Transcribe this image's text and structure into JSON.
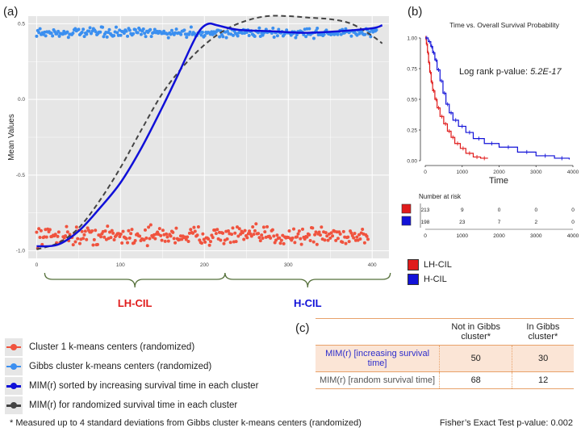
{
  "panels": {
    "a": "(a)",
    "b": "(b)",
    "c": "(c)"
  },
  "colors": {
    "cluster1": "#f0533e",
    "gibbs": "#3b8ff0",
    "mim_sorted": "#1010d8",
    "mim_random": "#444444",
    "panel_bg": "#e6e6e6",
    "lh": "#e01b1b",
    "h": "#1212d8"
  },
  "chart_data": [
    {
      "type": "scatter",
      "ylabel": "Mean Values",
      "xlim": [
        -10,
        420
      ],
      "ylim": [
        -1.05,
        0.55
      ],
      "x_ticks": [
        "0",
        "100",
        "200",
        "300",
        "400"
      ],
      "y_ticks": [
        "0.5",
        "0.0",
        "-0.5",
        "-1.0"
      ],
      "grid": true,
      "series": [
        {
          "name": "Cluster 1 k-means centers (randomized)",
          "kind": "points",
          "x_range": [
            0,
            395
          ],
          "y_center": -0.9,
          "y_spread": 0.06
        },
        {
          "name": "Gibbs cluster k-means centers (randomized)",
          "kind": "points",
          "x_range": [
            0,
            405
          ],
          "y_center": 0.44,
          "y_spread": 0.03
        },
        {
          "name": "MIM(r) sorted by increasing survival time in each cluster",
          "kind": "line",
          "x": [
            0,
            25,
            50,
            75,
            100,
            125,
            150,
            170,
            185,
            195,
            205,
            215,
            240,
            280,
            320,
            360,
            400,
            412
          ],
          "y": [
            -0.97,
            -0.96,
            -0.87,
            -0.72,
            -0.55,
            -0.32,
            -0.05,
            0.18,
            0.36,
            0.46,
            0.5,
            0.49,
            0.46,
            0.45,
            0.44,
            0.45,
            0.47,
            0.49
          ]
        },
        {
          "name": "MIM(r) for randomized survival time in each cluster",
          "kind": "line",
          "x": [
            0,
            25,
            50,
            75,
            100,
            125,
            150,
            175,
            200,
            225,
            250,
            275,
            300,
            325,
            350,
            375,
            400,
            412
          ],
          "y": [
            -0.99,
            -0.95,
            -0.85,
            -0.67,
            -0.45,
            -0.2,
            0.04,
            0.22,
            0.36,
            0.46,
            0.52,
            0.55,
            0.55,
            0.54,
            0.53,
            0.5,
            0.42,
            0.37
          ]
        }
      ],
      "groups": [
        {
          "label": "LH-CIL",
          "x_range": [
            0,
            215
          ]
        },
        {
          "label": "H-CIL",
          "x_range": [
            215,
            412
          ]
        }
      ]
    },
    {
      "type": "line",
      "title": "Time vs. Overall Survival Probability",
      "xlabel": "Time",
      "xlim": [
        0,
        4000
      ],
      "ylim": [
        0,
        1
      ],
      "x_ticks": [
        "0",
        "1000",
        "2000",
        "3000",
        "4000"
      ],
      "y_ticks": [
        "1.00",
        "0.75",
        "0.50",
        "0.25",
        "0.00"
      ],
      "annotation": {
        "text": "Log rank p-value: ",
        "value": "5.2E-17"
      },
      "series": [
        {
          "name": "LH-CIL",
          "time": [
            0,
            30,
            60,
            90,
            120,
            160,
            200,
            260,
            320,
            400,
            500,
            600,
            700,
            800,
            950,
            1100,
            1300,
            1500,
            1700
          ],
          "survival": [
            1.0,
            0.95,
            0.88,
            0.8,
            0.72,
            0.64,
            0.57,
            0.5,
            0.43,
            0.36,
            0.3,
            0.24,
            0.19,
            0.14,
            0.1,
            0.06,
            0.03,
            0.02,
            0.02
          ]
        },
        {
          "name": "H-CIL",
          "time": [
            0,
            80,
            150,
            200,
            260,
            320,
            400,
            480,
            560,
            650,
            750,
            900,
            1100,
            1300,
            1600,
            2000,
            2500,
            3000,
            3500,
            3900
          ],
          "survival": [
            1.0,
            0.97,
            0.93,
            0.88,
            0.82,
            0.74,
            0.65,
            0.55,
            0.46,
            0.39,
            0.33,
            0.28,
            0.23,
            0.18,
            0.14,
            0.11,
            0.07,
            0.04,
            0.02,
            0.01
          ]
        }
      ],
      "risk_table": {
        "title": "Number at risk",
        "times": [
          "0",
          "1000",
          "2000",
          "3000",
          "4000"
        ],
        "rows": [
          {
            "name": "LH-CIL",
            "counts": [
              "213",
              "9",
              "0",
              "0",
              "0"
            ]
          },
          {
            "name": "H-CIL",
            "counts": [
              "198",
              "23",
              "7",
              "2",
              "0"
            ]
          }
        ]
      }
    }
  ],
  "legend_a": [
    {
      "label": "Cluster 1 k-means centers (randomized)"
    },
    {
      "label": "Gibbs cluster k-means centers (randomized)"
    },
    {
      "label": "MIM(r) sorted by increasing survival time in each cluster"
    },
    {
      "label": "MIM(r) for randomized survival time in each cluster"
    }
  ],
  "legend_b": [
    {
      "label": "LH-CIL"
    },
    {
      "label": "H-CIL"
    }
  ],
  "table_c": {
    "headers": [
      "",
      "Not in Gibbs cluster*",
      "In Gibbs cluster*"
    ],
    "rows": [
      {
        "label": "MIM(r) [increasing survival time]",
        "values": [
          "50",
          "30"
        ]
      },
      {
        "label": "MIM(r) [random survival time]",
        "values": [
          "68",
          "12"
        ]
      }
    ]
  },
  "footnote": "* Measured up to 4 standard deviations from Gibbs cluster k-means centers (randomized)",
  "fisher": "Fisher’s Exact Test p-value: 0.002"
}
